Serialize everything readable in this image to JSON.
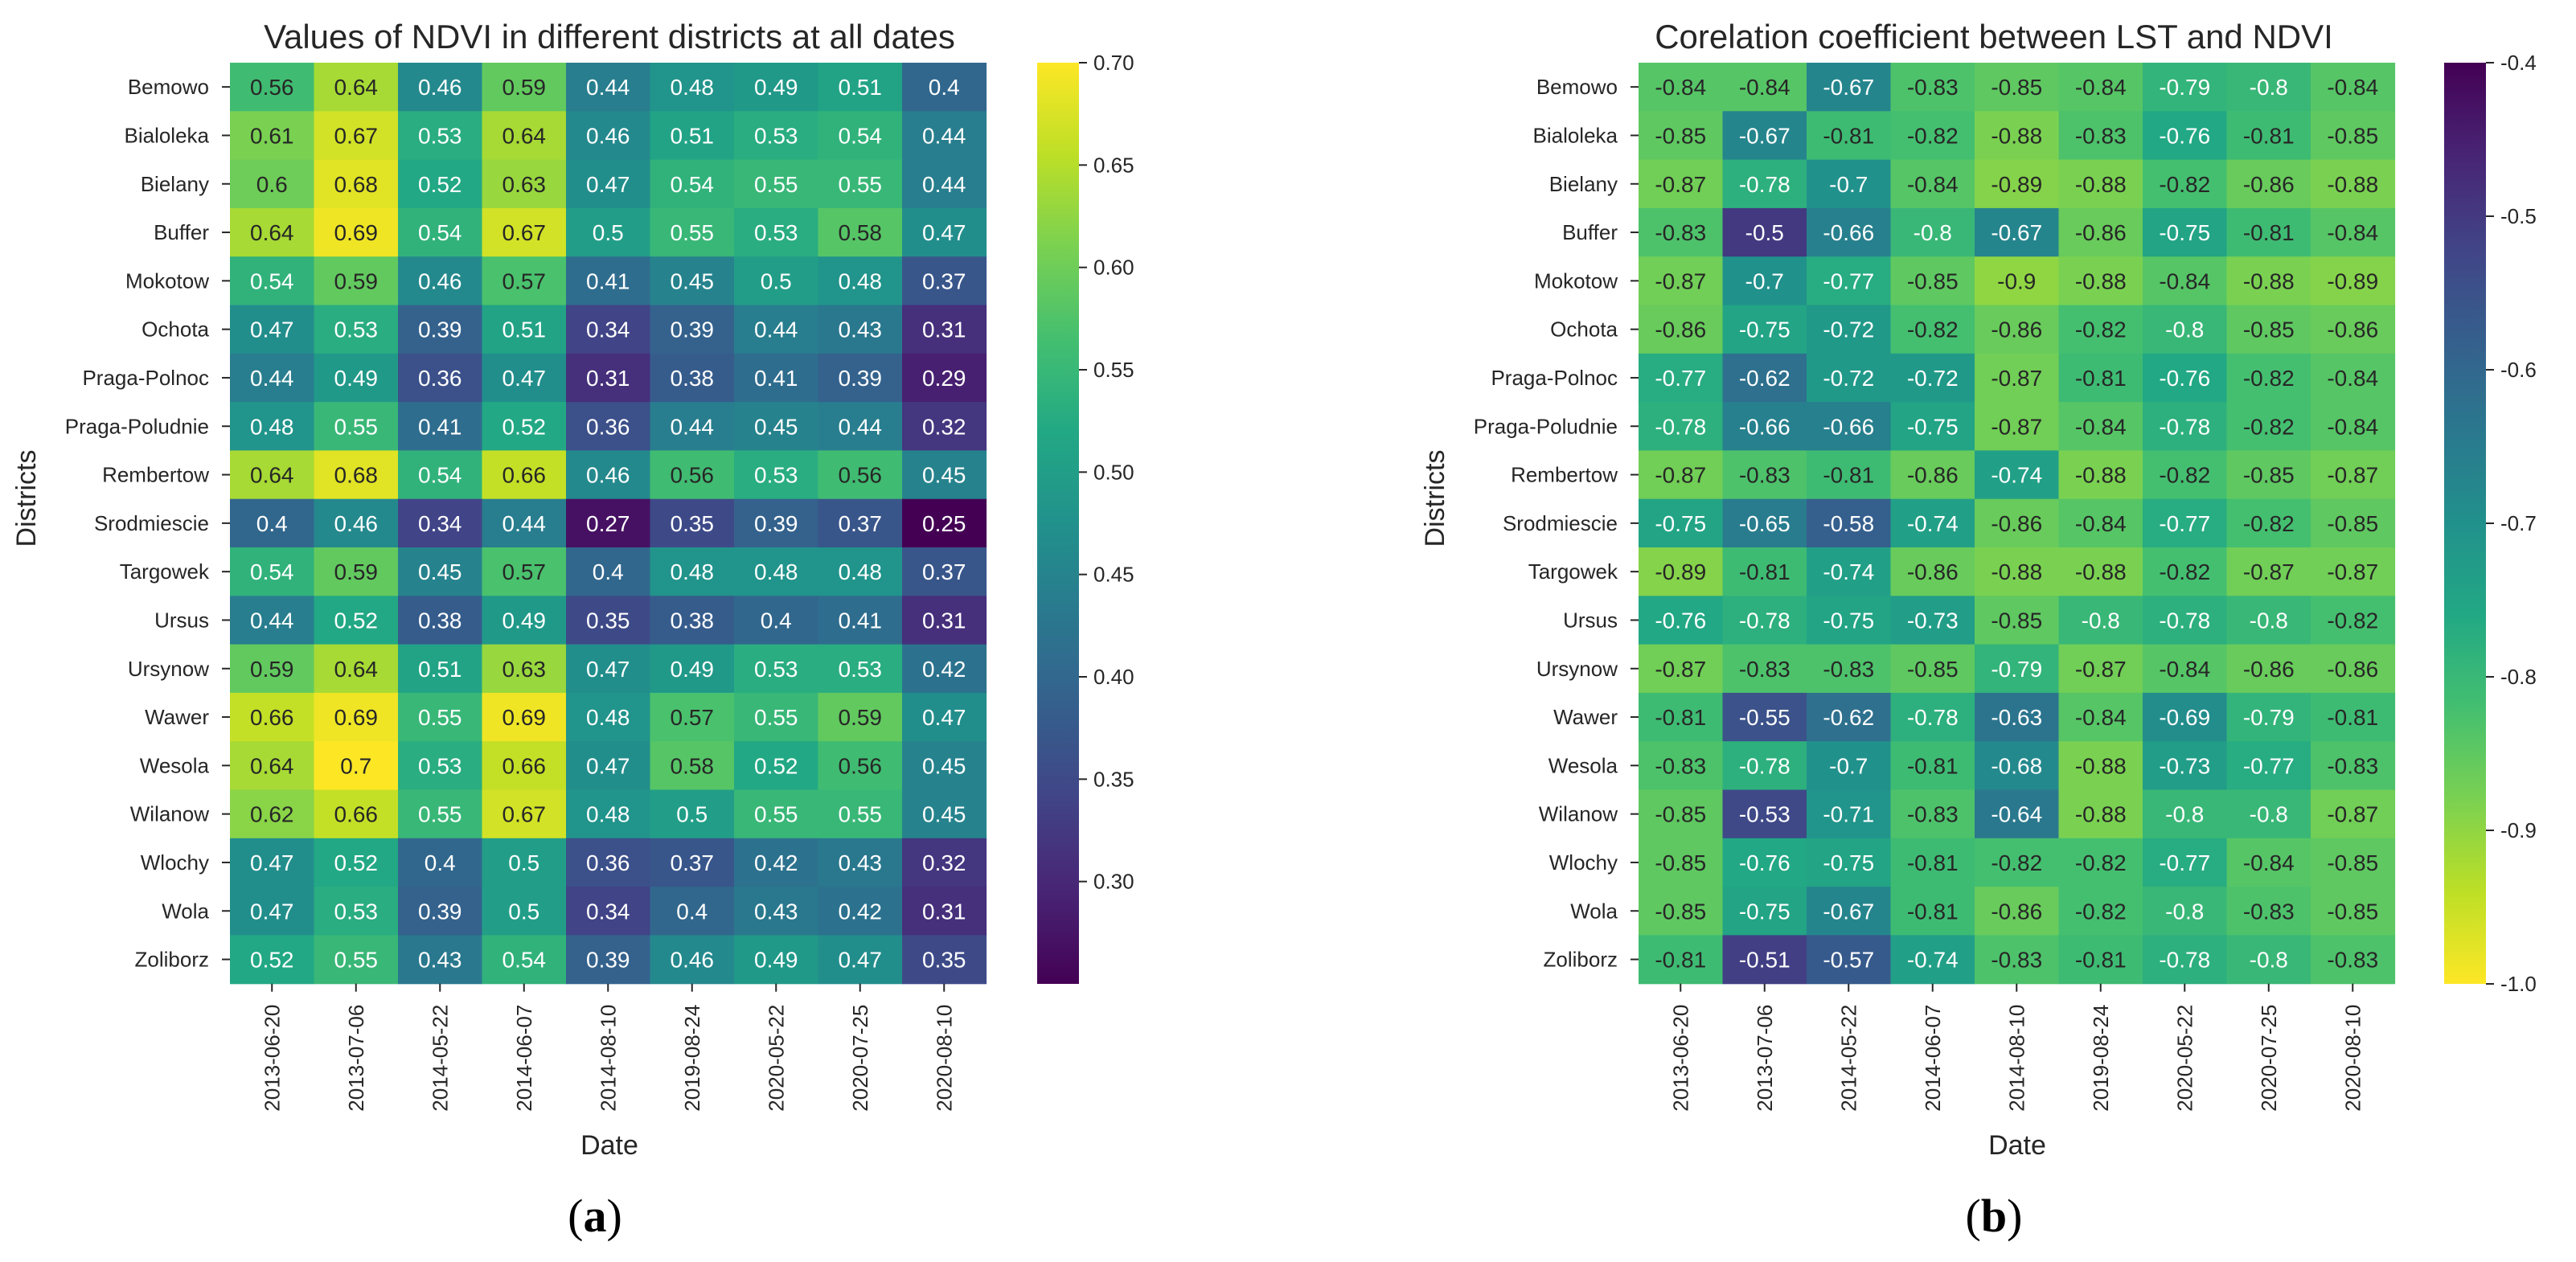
{
  "chart_data": [
    {
      "type": "heatmap",
      "title": "Values of NDVI in different districts at all dates",
      "xlabel": "Date",
      "ylabel": "Districts",
      "panel_label": "a",
      "colormap": "viridis",
      "vmin": 0.25,
      "vmax": 0.7,
      "colorbar_ticks": [
        "0.70",
        "0.65",
        "0.60",
        "0.55",
        "0.50",
        "0.45",
        "0.40",
        "0.35",
        "0.30"
      ],
      "columns": [
        "2013-06-20",
        "2013-07-06",
        "2014-05-22",
        "2014-06-07",
        "2014-08-10",
        "2019-08-24",
        "2020-05-22",
        "2020-07-25",
        "2020-08-10"
      ],
      "rows": [
        "Bemowo",
        "Bialoleka",
        "Bielany",
        "Buffer",
        "Mokotow",
        "Ochota",
        "Praga-Polnoc",
        "Praga-Poludnie",
        "Rembertow",
        "Srodmiescie",
        "Targowek",
        "Ursus",
        "Ursynow",
        "Wawer",
        "Wesola",
        "Wilanow",
        "Wlochy",
        "Wola",
        "Zoliborz"
      ],
      "values": [
        [
          "0.56",
          "0.64",
          "0.46",
          "0.59",
          "0.44",
          "0.48",
          "0.49",
          "0.51",
          "0.4"
        ],
        [
          "0.61",
          "0.67",
          "0.53",
          "0.64",
          "0.46",
          "0.51",
          "0.53",
          "0.54",
          "0.44"
        ],
        [
          "0.6",
          "0.68",
          "0.52",
          "0.63",
          "0.47",
          "0.54",
          "0.55",
          "0.55",
          "0.44"
        ],
        [
          "0.64",
          "0.69",
          "0.54",
          "0.67",
          "0.5",
          "0.55",
          "0.53",
          "0.58",
          "0.47"
        ],
        [
          "0.54",
          "0.59",
          "0.46",
          "0.57",
          "0.41",
          "0.45",
          "0.5",
          "0.48",
          "0.37"
        ],
        [
          "0.47",
          "0.53",
          "0.39",
          "0.51",
          "0.34",
          "0.39",
          "0.44",
          "0.43",
          "0.31"
        ],
        [
          "0.44",
          "0.49",
          "0.36",
          "0.47",
          "0.31",
          "0.38",
          "0.41",
          "0.39",
          "0.29"
        ],
        [
          "0.48",
          "0.55",
          "0.41",
          "0.52",
          "0.36",
          "0.44",
          "0.45",
          "0.44",
          "0.32"
        ],
        [
          "0.64",
          "0.68",
          "0.54",
          "0.66",
          "0.46",
          "0.56",
          "0.53",
          "0.56",
          "0.45"
        ],
        [
          "0.4",
          "0.46",
          "0.34",
          "0.44",
          "0.27",
          "0.35",
          "0.39",
          "0.37",
          "0.25"
        ],
        [
          "0.54",
          "0.59",
          "0.45",
          "0.57",
          "0.4",
          "0.48",
          "0.48",
          "0.48",
          "0.37"
        ],
        [
          "0.44",
          "0.52",
          "0.38",
          "0.49",
          "0.35",
          "0.38",
          "0.4",
          "0.41",
          "0.31"
        ],
        [
          "0.59",
          "0.64",
          "0.51",
          "0.63",
          "0.47",
          "0.49",
          "0.53",
          "0.53",
          "0.42"
        ],
        [
          "0.66",
          "0.69",
          "0.55",
          "0.69",
          "0.48",
          "0.57",
          "0.55",
          "0.59",
          "0.47"
        ],
        [
          "0.64",
          "0.7",
          "0.53",
          "0.66",
          "0.47",
          "0.58",
          "0.52",
          "0.56",
          "0.45"
        ],
        [
          "0.62",
          "0.66",
          "0.55",
          "0.67",
          "0.48",
          "0.5",
          "0.55",
          "0.55",
          "0.45"
        ],
        [
          "0.47",
          "0.52",
          "0.4",
          "0.5",
          "0.36",
          "0.37",
          "0.42",
          "0.43",
          "0.32"
        ],
        [
          "0.47",
          "0.53",
          "0.39",
          "0.5",
          "0.34",
          "0.4",
          "0.43",
          "0.42",
          "0.31"
        ],
        [
          "0.52",
          "0.55",
          "0.43",
          "0.54",
          "0.39",
          "0.46",
          "0.49",
          "0.47",
          "0.35"
        ]
      ]
    },
    {
      "type": "heatmap",
      "title": "Corelation coefficient between LST and NDVI",
      "xlabel": "Date",
      "ylabel": "Districts",
      "panel_label": "b",
      "colormap": "viridis_r",
      "vmin": -1.0,
      "vmax": -0.4,
      "colorbar_ticks": [
        "-0.4",
        "-0.5",
        "-0.6",
        "-0.7",
        "-0.8",
        "-0.9",
        "-1.0"
      ],
      "columns": [
        "2013-06-20",
        "2013-07-06",
        "2014-05-22",
        "2014-06-07",
        "2014-08-10",
        "2019-08-24",
        "2020-05-22",
        "2020-07-25",
        "2020-08-10"
      ],
      "rows": [
        "Bemowo",
        "Bialoleka",
        "Bielany",
        "Buffer",
        "Mokotow",
        "Ochota",
        "Praga-Polnoc",
        "Praga-Poludnie",
        "Rembertow",
        "Srodmiescie",
        "Targowek",
        "Ursus",
        "Ursynow",
        "Wawer",
        "Wesola",
        "Wilanow",
        "Wlochy",
        "Wola",
        "Zoliborz"
      ],
      "values": [
        [
          "-0.84",
          "-0.84",
          "-0.67",
          "-0.83",
          "-0.85",
          "-0.84",
          "-0.79",
          "-0.8",
          "-0.84"
        ],
        [
          "-0.85",
          "-0.67",
          "-0.81",
          "-0.82",
          "-0.88",
          "-0.83",
          "-0.76",
          "-0.81",
          "-0.85"
        ],
        [
          "-0.87",
          "-0.78",
          "-0.7",
          "-0.84",
          "-0.89",
          "-0.88",
          "-0.82",
          "-0.86",
          "-0.88"
        ],
        [
          "-0.83",
          "-0.5",
          "-0.66",
          "-0.8",
          "-0.67",
          "-0.86",
          "-0.75",
          "-0.81",
          "-0.84"
        ],
        [
          "-0.87",
          "-0.7",
          "-0.77",
          "-0.85",
          "-0.9",
          "-0.88",
          "-0.84",
          "-0.88",
          "-0.89"
        ],
        [
          "-0.86",
          "-0.75",
          "-0.72",
          "-0.82",
          "-0.86",
          "-0.82",
          "-0.8",
          "-0.85",
          "-0.86"
        ],
        [
          "-0.77",
          "-0.62",
          "-0.72",
          "-0.72",
          "-0.87",
          "-0.81",
          "-0.76",
          "-0.82",
          "-0.84"
        ],
        [
          "-0.78",
          "-0.66",
          "-0.66",
          "-0.75",
          "-0.87",
          "-0.84",
          "-0.78",
          "-0.82",
          "-0.84"
        ],
        [
          "-0.87",
          "-0.83",
          "-0.81",
          "-0.86",
          "-0.74",
          "-0.88",
          "-0.82",
          "-0.85",
          "-0.87"
        ],
        [
          "-0.75",
          "-0.65",
          "-0.58",
          "-0.74",
          "-0.86",
          "-0.84",
          "-0.77",
          "-0.82",
          "-0.85"
        ],
        [
          "-0.89",
          "-0.81",
          "-0.74",
          "-0.86",
          "-0.88",
          "-0.88",
          "-0.82",
          "-0.87",
          "-0.87"
        ],
        [
          "-0.76",
          "-0.78",
          "-0.75",
          "-0.73",
          "-0.85",
          "-0.8",
          "-0.78",
          "-0.8",
          "-0.82"
        ],
        [
          "-0.87",
          "-0.83",
          "-0.83",
          "-0.85",
          "-0.79",
          "-0.87",
          "-0.84",
          "-0.86",
          "-0.86"
        ],
        [
          "-0.81",
          "-0.55",
          "-0.62",
          "-0.78",
          "-0.63",
          "-0.84",
          "-0.69",
          "-0.79",
          "-0.81"
        ],
        [
          "-0.83",
          "-0.78",
          "-0.7",
          "-0.81",
          "-0.68",
          "-0.88",
          "-0.73",
          "-0.77",
          "-0.83"
        ],
        [
          "-0.85",
          "-0.53",
          "-0.71",
          "-0.83",
          "-0.64",
          "-0.88",
          "-0.8",
          "-0.8",
          "-0.87"
        ],
        [
          "-0.85",
          "-0.76",
          "-0.75",
          "-0.81",
          "-0.82",
          "-0.82",
          "-0.77",
          "-0.84",
          "-0.85"
        ],
        [
          "-0.85",
          "-0.75",
          "-0.67",
          "-0.81",
          "-0.86",
          "-0.82",
          "-0.8",
          "-0.83",
          "-0.85"
        ],
        [
          "-0.81",
          "-0.51",
          "-0.57",
          "-0.74",
          "-0.83",
          "-0.81",
          "-0.78",
          "-0.8",
          "-0.83"
        ]
      ]
    }
  ]
}
